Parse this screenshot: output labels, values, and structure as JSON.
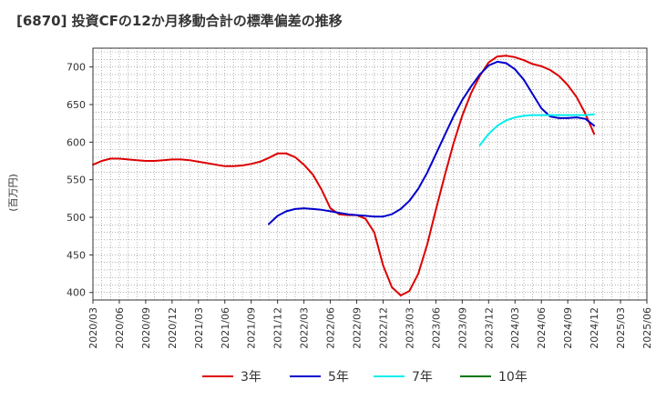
{
  "chart_data": {
    "type": "line",
    "title": "[6870]  投資CFの12か月移動合計の標準偏差の推移",
    "ylabel": "(百万円)",
    "xlabel": "",
    "ylim": [
      390,
      725
    ],
    "yticks": [
      400,
      450,
      500,
      550,
      600,
      650,
      700
    ],
    "x_ticks": [
      "2020/03",
      "2020/06",
      "2020/09",
      "2020/12",
      "2021/03",
      "2021/06",
      "2021/09",
      "2021/12",
      "2022/03",
      "2022/06",
      "2022/09",
      "2022/12",
      "2023/03",
      "2023/06",
      "2023/09",
      "2023/12",
      "2024/03",
      "2024/06",
      "2024/09",
      "2024/12",
      "2025/03",
      "2025/06"
    ],
    "grid": true,
    "legend_position": "bottom",
    "series": [
      {
        "name": "3年",
        "color": "#dd0000",
        "points": [
          [
            "2020/03",
            570
          ],
          [
            "2020/04",
            575
          ],
          [
            "2020/05",
            578
          ],
          [
            "2020/06",
            578
          ],
          [
            "2020/07",
            577
          ],
          [
            "2020/08",
            576
          ],
          [
            "2020/09",
            575
          ],
          [
            "2020/10",
            575
          ],
          [
            "2020/11",
            576
          ],
          [
            "2020/12",
            577
          ],
          [
            "2021/01",
            577
          ],
          [
            "2021/02",
            576
          ],
          [
            "2021/03",
            574
          ],
          [
            "2021/04",
            572
          ],
          [
            "2021/05",
            570
          ],
          [
            "2021/06",
            568
          ],
          [
            "2021/07",
            568
          ],
          [
            "2021/08",
            569
          ],
          [
            "2021/09",
            571
          ],
          [
            "2021/10",
            574
          ],
          [
            "2021/11",
            579
          ],
          [
            "2021/12",
            585
          ],
          [
            "2022/01",
            585
          ],
          [
            "2022/02",
            580
          ],
          [
            "2022/03",
            570
          ],
          [
            "2022/04",
            557
          ],
          [
            "2022/05",
            537
          ],
          [
            "2022/06",
            512
          ],
          [
            "2022/07",
            504
          ],
          [
            "2022/08",
            503
          ],
          [
            "2022/09",
            503
          ],
          [
            "2022/10",
            498
          ],
          [
            "2022/11",
            480
          ],
          [
            "2022/12",
            436
          ],
          [
            "2023/01",
            407
          ],
          [
            "2023/02",
            396
          ],
          [
            "2023/03",
            402
          ],
          [
            "2023/04",
            425
          ],
          [
            "2023/05",
            463
          ],
          [
            "2023/06",
            510
          ],
          [
            "2023/07",
            555
          ],
          [
            "2023/08",
            598
          ],
          [
            "2023/09",
            635
          ],
          [
            "2023/10",
            665
          ],
          [
            "2023/11",
            688
          ],
          [
            "2023/12",
            706
          ],
          [
            "2024/01",
            714
          ],
          [
            "2024/02",
            715
          ],
          [
            "2024/03",
            713
          ],
          [
            "2024/04",
            709
          ],
          [
            "2024/05",
            704
          ],
          [
            "2024/06",
            701
          ],
          [
            "2024/07",
            696
          ],
          [
            "2024/08",
            688
          ],
          [
            "2024/09",
            676
          ],
          [
            "2024/10",
            660
          ],
          [
            "2024/11",
            638
          ],
          [
            "2024/12",
            611
          ]
        ]
      },
      {
        "name": "5年",
        "color": "#0000cc",
        "points": [
          [
            "2021/11",
            491
          ],
          [
            "2021/12",
            502
          ],
          [
            "2022/01",
            508
          ],
          [
            "2022/02",
            511
          ],
          [
            "2022/03",
            512
          ],
          [
            "2022/04",
            511
          ],
          [
            "2022/05",
            510
          ],
          [
            "2022/06",
            508
          ],
          [
            "2022/07",
            506
          ],
          [
            "2022/08",
            504
          ],
          [
            "2022/09",
            503
          ],
          [
            "2022/10",
            502
          ],
          [
            "2022/11",
            501
          ],
          [
            "2022/12",
            501
          ],
          [
            "2023/01",
            504
          ],
          [
            "2023/02",
            511
          ],
          [
            "2023/03",
            522
          ],
          [
            "2023/04",
            538
          ],
          [
            "2023/05",
            559
          ],
          [
            "2023/06",
            584
          ],
          [
            "2023/07",
            609
          ],
          [
            "2023/08",
            634
          ],
          [
            "2023/09",
            656
          ],
          [
            "2023/10",
            674
          ],
          [
            "2023/11",
            690
          ],
          [
            "2023/12",
            702
          ],
          [
            "2024/01",
            707
          ],
          [
            "2024/02",
            705
          ],
          [
            "2024/03",
            697
          ],
          [
            "2024/04",
            683
          ],
          [
            "2024/05",
            664
          ],
          [
            "2024/06",
            645
          ],
          [
            "2024/07",
            634
          ],
          [
            "2024/08",
            632
          ],
          [
            "2024/09",
            632
          ],
          [
            "2024/10",
            633
          ],
          [
            "2024/11",
            631
          ],
          [
            "2024/12",
            622
          ]
        ]
      },
      {
        "name": "7年",
        "color": "#00eeee",
        "points": [
          [
            "2023/11",
            596
          ],
          [
            "2023/12",
            611
          ],
          [
            "2024/01",
            622
          ],
          [
            "2024/02",
            629
          ],
          [
            "2024/03",
            633
          ],
          [
            "2024/04",
            635
          ],
          [
            "2024/05",
            636
          ],
          [
            "2024/06",
            636
          ],
          [
            "2024/07",
            636
          ],
          [
            "2024/08",
            636
          ],
          [
            "2024/09",
            636
          ],
          [
            "2024/10",
            636
          ],
          [
            "2024/11",
            636
          ],
          [
            "2024/12",
            637
          ]
        ]
      },
      {
        "name": "10年",
        "color": "#007700",
        "points": []
      }
    ]
  }
}
